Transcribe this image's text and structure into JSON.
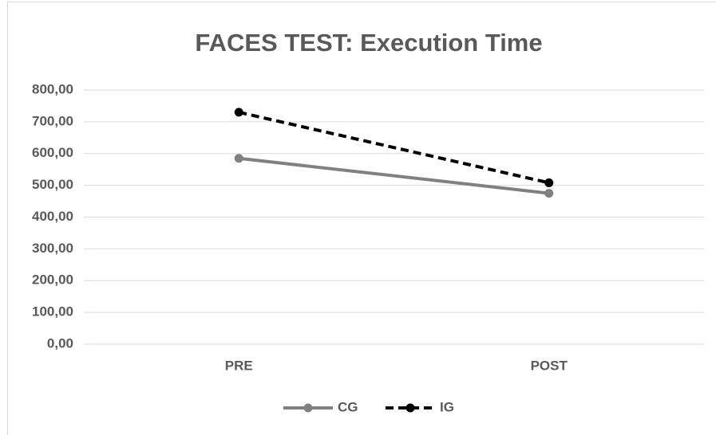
{
  "chart_data": {
    "type": "line",
    "title": "FACES TEST: Execution Time",
    "categories": [
      "PRE",
      "POST"
    ],
    "series": [
      {
        "name": "CG",
        "color": "#808080",
        "dash": false,
        "values": [
          585,
          475
        ]
      },
      {
        "name": "IG",
        "color": "#000000",
        "dash": true,
        "values": [
          730,
          508
        ]
      }
    ],
    "ylim": [
      0,
      800
    ],
    "yticks": [
      {
        "value": 0,
        "label": "0,00"
      },
      {
        "value": 100,
        "label": "100,00"
      },
      {
        "value": 200,
        "label": "200,00"
      },
      {
        "value": 300,
        "label": "300,00"
      },
      {
        "value": 400,
        "label": "400,00"
      },
      {
        "value": 500,
        "label": "500,00"
      },
      {
        "value": 600,
        "label": "600,00"
      },
      {
        "value": 700,
        "label": "700,00"
      },
      {
        "value": 800,
        "label": "800,00"
      }
    ],
    "grid": true,
    "legend": "bottom"
  }
}
